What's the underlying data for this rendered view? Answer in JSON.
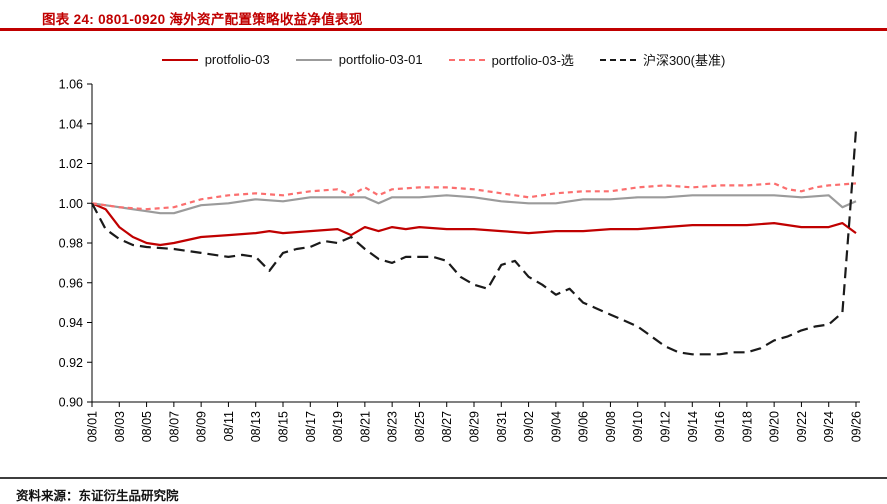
{
  "header": {
    "title": "图表 24: 0801-0920 海外资产配置策略收益净值表现"
  },
  "footer": {
    "source": "资料来源：东证衍生品研究院"
  },
  "colors": {
    "accent_red": "#c00000",
    "footer_rule": "#3d3d3d"
  },
  "chart_data": {
    "type": "line",
    "title": "0801-0920 海外资产配置策略收益净值表现",
    "xlabel": "",
    "ylabel": "",
    "grid": false,
    "legend_position": "top-center",
    "ylim": [
      0.9,
      1.06
    ],
    "yticks": [
      0.9,
      0.92,
      0.94,
      0.96,
      0.98,
      1.0,
      1.02,
      1.04,
      1.06
    ],
    "x_domain": [
      0,
      56
    ],
    "xticks": [
      {
        "pos": 0,
        "label": "08/01"
      },
      {
        "pos": 2,
        "label": "08/03"
      },
      {
        "pos": 4,
        "label": "08/05"
      },
      {
        "pos": 6,
        "label": "08/07"
      },
      {
        "pos": 8,
        "label": "08/09"
      },
      {
        "pos": 10,
        "label": "08/11"
      },
      {
        "pos": 12,
        "label": "08/13"
      },
      {
        "pos": 14,
        "label": "08/15"
      },
      {
        "pos": 16,
        "label": "08/17"
      },
      {
        "pos": 18,
        "label": "08/19"
      },
      {
        "pos": 20,
        "label": "08/21"
      },
      {
        "pos": 22,
        "label": "08/23"
      },
      {
        "pos": 24,
        "label": "08/25"
      },
      {
        "pos": 26,
        "label": "08/27"
      },
      {
        "pos": 28,
        "label": "08/29"
      },
      {
        "pos": 30,
        "label": "08/31"
      },
      {
        "pos": 32,
        "label": "09/02"
      },
      {
        "pos": 34,
        "label": "09/04"
      },
      {
        "pos": 36,
        "label": "09/06"
      },
      {
        "pos": 38,
        "label": "09/08"
      },
      {
        "pos": 40,
        "label": "09/10"
      },
      {
        "pos": 42,
        "label": "09/12"
      },
      {
        "pos": 44,
        "label": "09/14"
      },
      {
        "pos": 46,
        "label": "09/16"
      },
      {
        "pos": 48,
        "label": "09/18"
      },
      {
        "pos": 50,
        "label": "09/20"
      },
      {
        "pos": 52,
        "label": "09/22"
      },
      {
        "pos": 54,
        "label": "09/24"
      },
      {
        "pos": 56,
        "label": "09/26"
      }
    ],
    "series": [
      {
        "name": "protfolio-03",
        "color": "#c00000",
        "dash": "",
        "width": 2.2,
        "points": [
          [
            0,
            1.0
          ],
          [
            1,
            0.997
          ],
          [
            2,
            0.988
          ],
          [
            3,
            0.983
          ],
          [
            4,
            0.98
          ],
          [
            5,
            0.979
          ],
          [
            6,
            0.98
          ],
          [
            8,
            0.983
          ],
          [
            10,
            0.984
          ],
          [
            12,
            0.985
          ],
          [
            13,
            0.986
          ],
          [
            14,
            0.985
          ],
          [
            16,
            0.986
          ],
          [
            18,
            0.987
          ],
          [
            19,
            0.984
          ],
          [
            20,
            0.988
          ],
          [
            21,
            0.986
          ],
          [
            22,
            0.988
          ],
          [
            23,
            0.987
          ],
          [
            24,
            0.988
          ],
          [
            26,
            0.987
          ],
          [
            28,
            0.987
          ],
          [
            30,
            0.986
          ],
          [
            32,
            0.985
          ],
          [
            34,
            0.986
          ],
          [
            36,
            0.986
          ],
          [
            38,
            0.987
          ],
          [
            40,
            0.987
          ],
          [
            42,
            0.988
          ],
          [
            44,
            0.989
          ],
          [
            46,
            0.989
          ],
          [
            48,
            0.989
          ],
          [
            50,
            0.99
          ],
          [
            52,
            0.988
          ],
          [
            54,
            0.988
          ],
          [
            55,
            0.99
          ],
          [
            56,
            0.985
          ]
        ]
      },
      {
        "name": "portfolio-03-01",
        "color": "#9b9b9b",
        "dash": "",
        "width": 2.2,
        "points": [
          [
            0,
            1.0
          ],
          [
            2,
            0.998
          ],
          [
            4,
            0.996
          ],
          [
            5,
            0.995
          ],
          [
            6,
            0.995
          ],
          [
            8,
            0.999
          ],
          [
            10,
            1.0
          ],
          [
            12,
            1.002
          ],
          [
            14,
            1.001
          ],
          [
            16,
            1.003
          ],
          [
            18,
            1.003
          ],
          [
            20,
            1.003
          ],
          [
            21,
            1.0
          ],
          [
            22,
            1.003
          ],
          [
            24,
            1.003
          ],
          [
            26,
            1.004
          ],
          [
            28,
            1.003
          ],
          [
            30,
            1.001
          ],
          [
            32,
            1.0
          ],
          [
            34,
            1.0
          ],
          [
            36,
            1.002
          ],
          [
            38,
            1.002
          ],
          [
            40,
            1.003
          ],
          [
            42,
            1.003
          ],
          [
            44,
            1.004
          ],
          [
            46,
            1.004
          ],
          [
            48,
            1.004
          ],
          [
            50,
            1.004
          ],
          [
            52,
            1.003
          ],
          [
            54,
            1.004
          ],
          [
            55,
            0.998
          ],
          [
            56,
            1.001
          ]
        ]
      },
      {
        "name": "portfolio-03-选",
        "color": "#fb6e6e",
        "dash": "5 4",
        "width": 2.2,
        "points": [
          [
            0,
            1.0
          ],
          [
            2,
            0.998
          ],
          [
            4,
            0.997
          ],
          [
            6,
            0.998
          ],
          [
            8,
            1.002
          ],
          [
            10,
            1.004
          ],
          [
            12,
            1.005
          ],
          [
            14,
            1.004
          ],
          [
            16,
            1.006
          ],
          [
            18,
            1.007
          ],
          [
            19,
            1.004
          ],
          [
            20,
            1.008
          ],
          [
            21,
            1.004
          ],
          [
            22,
            1.007
          ],
          [
            24,
            1.008
          ],
          [
            26,
            1.008
          ],
          [
            28,
            1.007
          ],
          [
            30,
            1.005
          ],
          [
            32,
            1.003
          ],
          [
            34,
            1.005
          ],
          [
            36,
            1.006
          ],
          [
            38,
            1.006
          ],
          [
            40,
            1.008
          ],
          [
            42,
            1.009
          ],
          [
            44,
            1.008
          ],
          [
            46,
            1.009
          ],
          [
            48,
            1.009
          ],
          [
            50,
            1.01
          ],
          [
            51,
            1.007
          ],
          [
            52,
            1.006
          ],
          [
            53,
            1.008
          ],
          [
            54,
            1.009
          ],
          [
            56,
            1.01
          ]
        ]
      },
      {
        "name": "沪深300(基准)",
        "color": "#1a1a1a",
        "dash": "11 6",
        "width": 2.2,
        "points": [
          [
            0,
            1.0
          ],
          [
            1,
            0.987
          ],
          [
            2,
            0.982
          ],
          [
            3,
            0.979
          ],
          [
            4,
            0.978
          ],
          [
            6,
            0.977
          ],
          [
            8,
            0.975
          ],
          [
            10,
            0.973
          ],
          [
            11,
            0.974
          ],
          [
            12,
            0.973
          ],
          [
            13,
            0.966
          ],
          [
            14,
            0.975
          ],
          [
            15,
            0.977
          ],
          [
            16,
            0.978
          ],
          [
            17,
            0.981
          ],
          [
            18,
            0.98
          ],
          [
            19,
            0.983
          ],
          [
            20,
            0.977
          ],
          [
            21,
            0.972
          ],
          [
            22,
            0.97
          ],
          [
            23,
            0.973
          ],
          [
            25,
            0.973
          ],
          [
            26,
            0.971
          ],
          [
            27,
            0.963
          ],
          [
            28,
            0.959
          ],
          [
            29,
            0.957
          ],
          [
            30,
            0.969
          ],
          [
            31,
            0.971
          ],
          [
            32,
            0.963
          ],
          [
            33,
            0.959
          ],
          [
            34,
            0.954
          ],
          [
            35,
            0.957
          ],
          [
            36,
            0.95
          ],
          [
            37,
            0.947
          ],
          [
            38,
            0.944
          ],
          [
            39,
            0.941
          ],
          [
            40,
            0.938
          ],
          [
            41,
            0.933
          ],
          [
            42,
            0.928
          ],
          [
            43,
            0.925
          ],
          [
            44,
            0.924
          ],
          [
            45,
            0.924
          ],
          [
            46,
            0.924
          ],
          [
            47,
            0.925
          ],
          [
            48,
            0.925
          ],
          [
            49,
            0.927
          ],
          [
            50,
            0.931
          ],
          [
            51,
            0.933
          ],
          [
            52,
            0.936
          ],
          [
            53,
            0.938
          ],
          [
            54,
            0.939
          ],
          [
            55,
            0.945
          ],
          [
            55.5,
            0.99
          ],
          [
            56,
            1.037
          ]
        ]
      }
    ]
  }
}
